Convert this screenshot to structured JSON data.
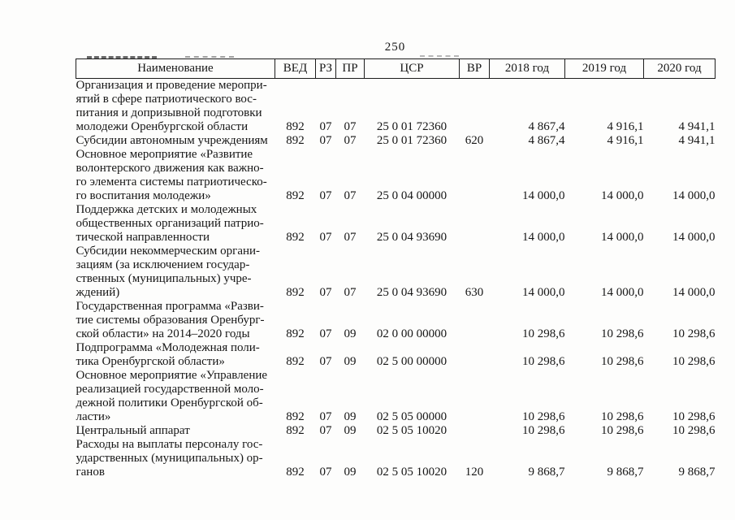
{
  "page": {
    "number": "250"
  },
  "table": {
    "headers": [
      "Наименование",
      "ВЕД",
      "РЗ",
      "ПР",
      "ЦСР",
      "ВР",
      "2018 год",
      "2019 год",
      "2020 год"
    ],
    "rows": [
      {
        "name": "Организация и проведение меропри-\nятий в сфере патриотического вос-\nпитания и допризывной подготовки\nмолодежи Оренбургской области",
        "ved": "892",
        "rz": "07",
        "pr": "07",
        "csr": "25 0 01 72360",
        "vr": "",
        "y2018": "4 867,4",
        "y2019": "4 916,1",
        "y2020": "4 941,1"
      },
      {
        "name": "Субсидии автономным учреждениям",
        "ved": "892",
        "rz": "07",
        "pr": "07",
        "csr": "25 0 01 72360",
        "vr": "620",
        "y2018": "4 867,4",
        "y2019": "4 916,1",
        "y2020": "4 941,1"
      },
      {
        "name": "Основное мероприятие «Развитие\nволонтерского движения как важно-\nго элемента системы патриотическо-\nго воспитания молодежи»",
        "ved": "892",
        "rz": "07",
        "pr": "07",
        "csr": "25 0 04 00000",
        "vr": "",
        "y2018": "14 000,0",
        "y2019": "14 000,0",
        "y2020": "14 000,0"
      },
      {
        "name": "Поддержка детских и молодежных\nобщественных организаций патрио-\nтической направленности",
        "ved": "892",
        "rz": "07",
        "pr": "07",
        "csr": "25 0 04 93690",
        "vr": "",
        "y2018": "14 000,0",
        "y2019": "14 000,0",
        "y2020": "14 000,0"
      },
      {
        "name": "Субсидии некоммерческим органи-\nзациям (за исключением государ-\nственных (муниципальных) учре-\nждений)",
        "ved": "892",
        "rz": "07",
        "pr": "07",
        "csr": "25 0 04 93690",
        "vr": "630",
        "y2018": "14 000,0",
        "y2019": "14 000,0",
        "y2020": "14 000,0"
      },
      {
        "name": "Государственная программа «Разви-\nтие системы образования Оренбург-\nской области» на 2014–2020 годы",
        "ved": "892",
        "rz": "07",
        "pr": "09",
        "csr": "02 0 00 00000",
        "vr": "",
        "y2018": "10 298,6",
        "y2019": "10 298,6",
        "y2020": "10 298,6"
      },
      {
        "name": "Подпрограмма «Молодежная поли-\nтика Оренбургской области»",
        "ved": "892",
        "rz": "07",
        "pr": "09",
        "csr": "02 5 00 00000",
        "vr": "",
        "y2018": "10 298,6",
        "y2019": "10 298,6",
        "y2020": "10 298,6"
      },
      {
        "name": "Основное мероприятие «Управление\nреализацией государственной моло-\nдежной политики Оренбургской об-\nласти»",
        "ved": "892",
        "rz": "07",
        "pr": "09",
        "csr": "02 5 05 00000",
        "vr": "",
        "y2018": "10 298,6",
        "y2019": "10 298,6",
        "y2020": "10 298,6"
      },
      {
        "name": "Центральный аппарат",
        "ved": "892",
        "rz": "07",
        "pr": "09",
        "csr": "02 5 05 10020",
        "vr": "",
        "y2018": "10 298,6",
        "y2019": "10 298,6",
        "y2020": "10 298,6"
      },
      {
        "name": "Расходы на выплаты персоналу гос-\nударственных (муниципальных) ор-\nганов",
        "ved": "892",
        "rz": "07",
        "pr": "09",
        "csr": "02 5 05 10020",
        "vr": "120",
        "y2018": "9 868,7",
        "y2019": "9 868,7",
        "y2020": "9 868,7"
      }
    ]
  }
}
